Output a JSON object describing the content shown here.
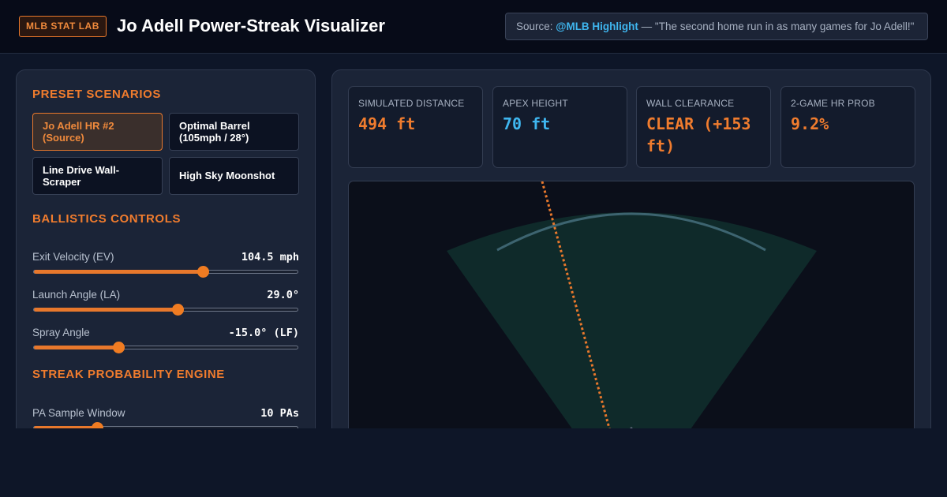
{
  "header": {
    "badge": "MLB STAT LAB",
    "title": "Jo Adell Power-Streak Visualizer",
    "source_prefix": "Source: ",
    "source_handle": "@MLB Highlight",
    "source_quote": " — \"The second home run in as many games for Jo Adell!\""
  },
  "presets": {
    "title": "PRESET SCENARIOS",
    "items": [
      {
        "label": "Jo Adell HR #2 (Source)",
        "active": true
      },
      {
        "label": "Optimal Barrel (105mph / 28°)",
        "active": false
      },
      {
        "label": "Line Drive Wall-Scraper",
        "active": false
      },
      {
        "label": "High Sky Moonshot",
        "active": false
      }
    ]
  },
  "ballistics": {
    "title": "BALLISTICS CONTROLS",
    "controls": [
      {
        "label": "Exit Velocity (EV)",
        "value": "104.5 mph",
        "level": 0.64
      },
      {
        "label": "Launch Angle (LA)",
        "value": "29.0°",
        "level": 0.545
      },
      {
        "label": "Spray Angle",
        "value": "-15.0° (LF)",
        "level": 0.32
      }
    ]
  },
  "streak": {
    "title": "STREAK PROBABILITY ENGINE",
    "controls": [
      {
        "label": "PA Sample Window",
        "value": "10 PAs",
        "level": 0.24
      }
    ]
  },
  "stats": [
    {
      "label": "SIMULATED DISTANCE",
      "value": "494 ft",
      "color": "#f07c2e"
    },
    {
      "label": "APEX HEIGHT",
      "value": "70 ft",
      "color": "#3fb6ef"
    },
    {
      "label": "WALL CLEARANCE",
      "value": "CLEAR (+153 ft)",
      "color": "#f07c2e"
    },
    {
      "label": "2-GAME HR PROB",
      "value": "9.2%",
      "color": "#f07c2e"
    }
  ],
  "colors": {
    "accent": "#f07c2e",
    "info": "#3fb6ef",
    "field_fill": "#0f2a2a",
    "fence": "#3d6470"
  },
  "field": {
    "trajectory_color": "#e8782c"
  }
}
